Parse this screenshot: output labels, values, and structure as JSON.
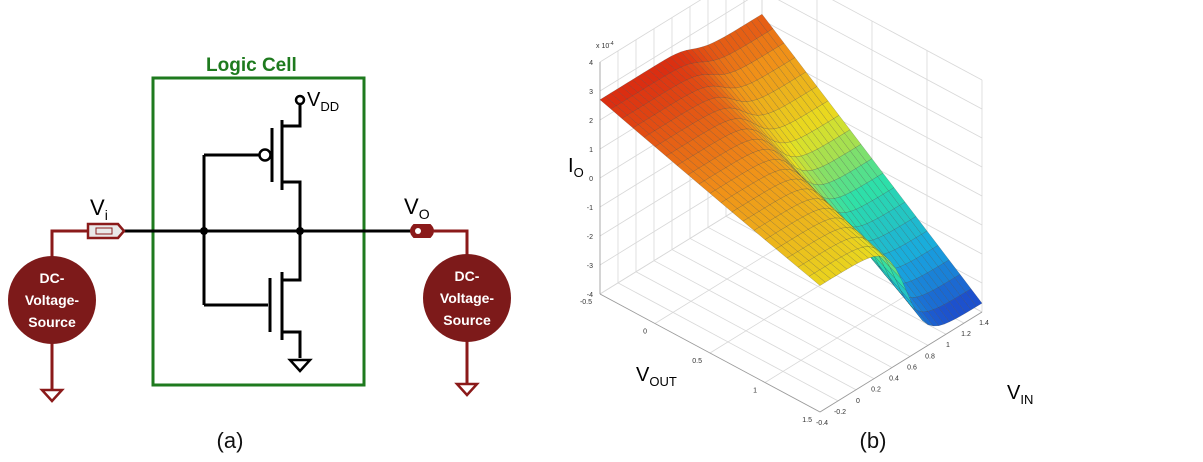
{
  "panel_a": {
    "label": "(a)",
    "logic_cell_title": "Logic Cell",
    "vdd_label": "V",
    "vdd_sub": "DD",
    "vi_label": "V",
    "vi_sub": "i",
    "vo_label": "V",
    "vo_sub": "O",
    "source_left": [
      "DC-",
      "Voltage-",
      "Source"
    ],
    "source_right": [
      "DC-",
      "Voltage-",
      "Source"
    ],
    "colors": {
      "cell_border": "#1e7a1e",
      "source_fill": "#7d1a1a",
      "wire_red": "#8b1a1a"
    }
  },
  "panel_b": {
    "label": "(b)",
    "z_label": "I",
    "z_sub": "O",
    "x_label": "V",
    "x_sub": "OUT",
    "y_label": "V",
    "y_sub": "IN",
    "exponent": "x 10",
    "exponent_power": "-4",
    "z_ticks": [
      "4",
      "3",
      "2",
      "1",
      "0",
      "-1",
      "-2",
      "-3",
      "-4"
    ],
    "vout_ticks": [
      "-0.5",
      "0",
      "0.5",
      "1",
      "1.5"
    ],
    "vin_ticks": [
      "-0.4",
      "-0.2",
      "0",
      "0.2",
      "0.4",
      "0.6",
      "0.8",
      "1",
      "1.2",
      "1.4"
    ],
    "colormap": [
      "#1e3cc8",
      "#18a8e0",
      "#2ee0a8",
      "#e8e020",
      "#f09018",
      "#d82010"
    ]
  }
}
